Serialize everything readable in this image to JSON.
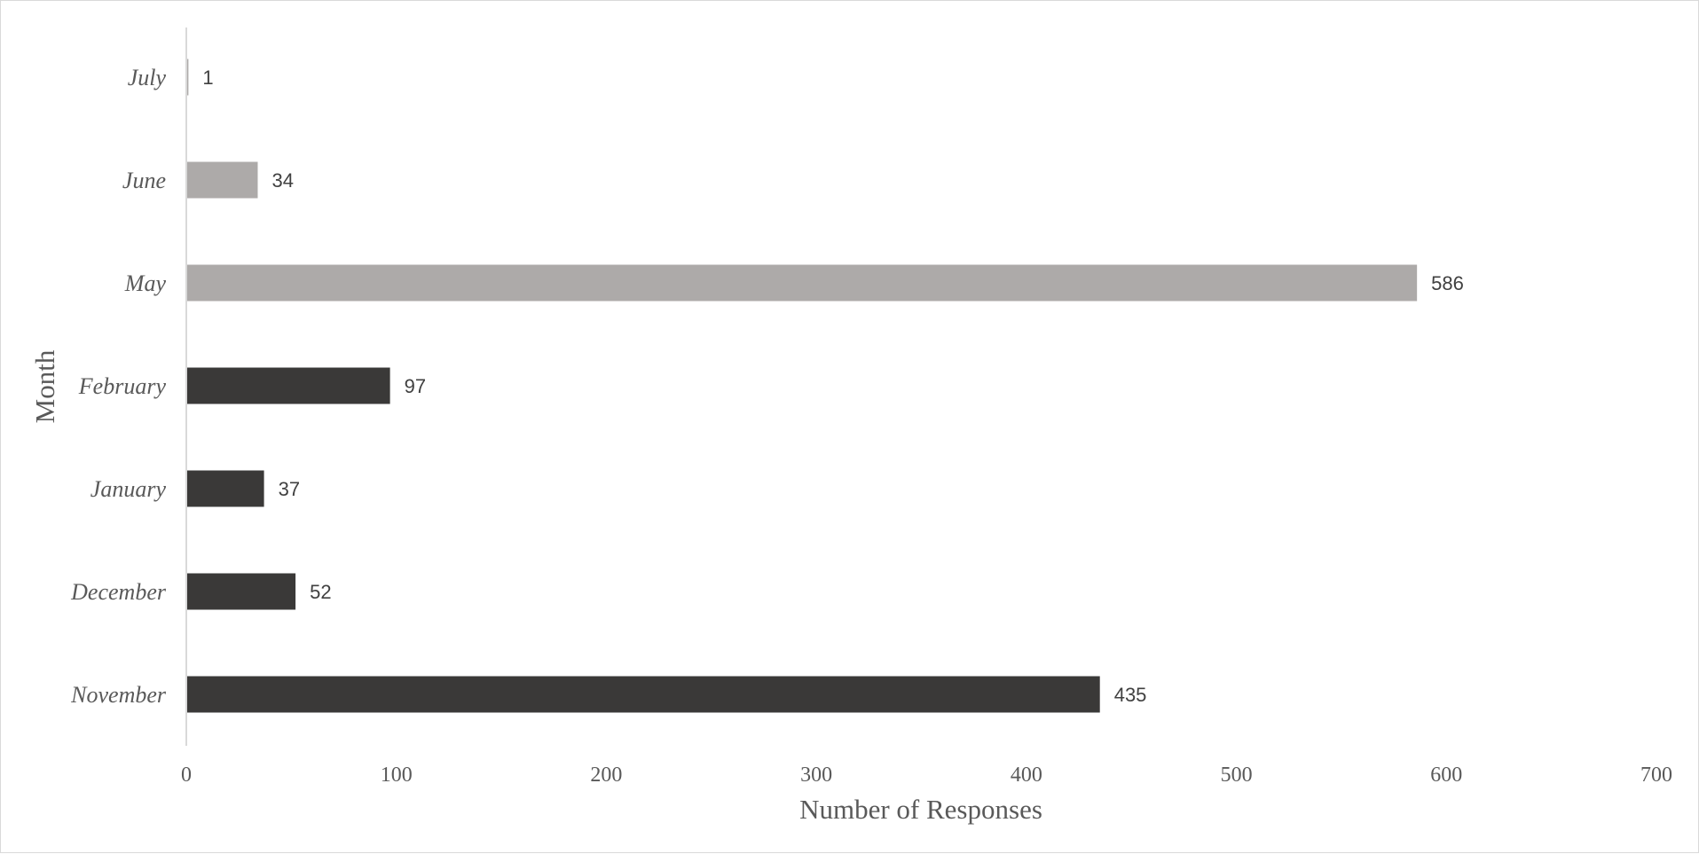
{
  "chart_data": {
    "type": "bar",
    "orientation": "horizontal",
    "categories": [
      "November",
      "December",
      "January",
      "February",
      "May",
      "June",
      "July"
    ],
    "values": [
      435,
      52,
      37,
      97,
      586,
      34,
      1
    ],
    "bar_colors": [
      "#3a3938",
      "#3a3938",
      "#3a3938",
      "#3a3938",
      "#adaaa9",
      "#adaaa9",
      "#adaaa9"
    ],
    "xlabel": "Number of Responses",
    "ylabel": "Month",
    "xlim": [
      0,
      700
    ],
    "x_ticks": [
      0,
      100,
      200,
      300,
      400,
      500,
      600,
      700
    ],
    "grid": false,
    "legend": "none",
    "data_labels": true
  }
}
